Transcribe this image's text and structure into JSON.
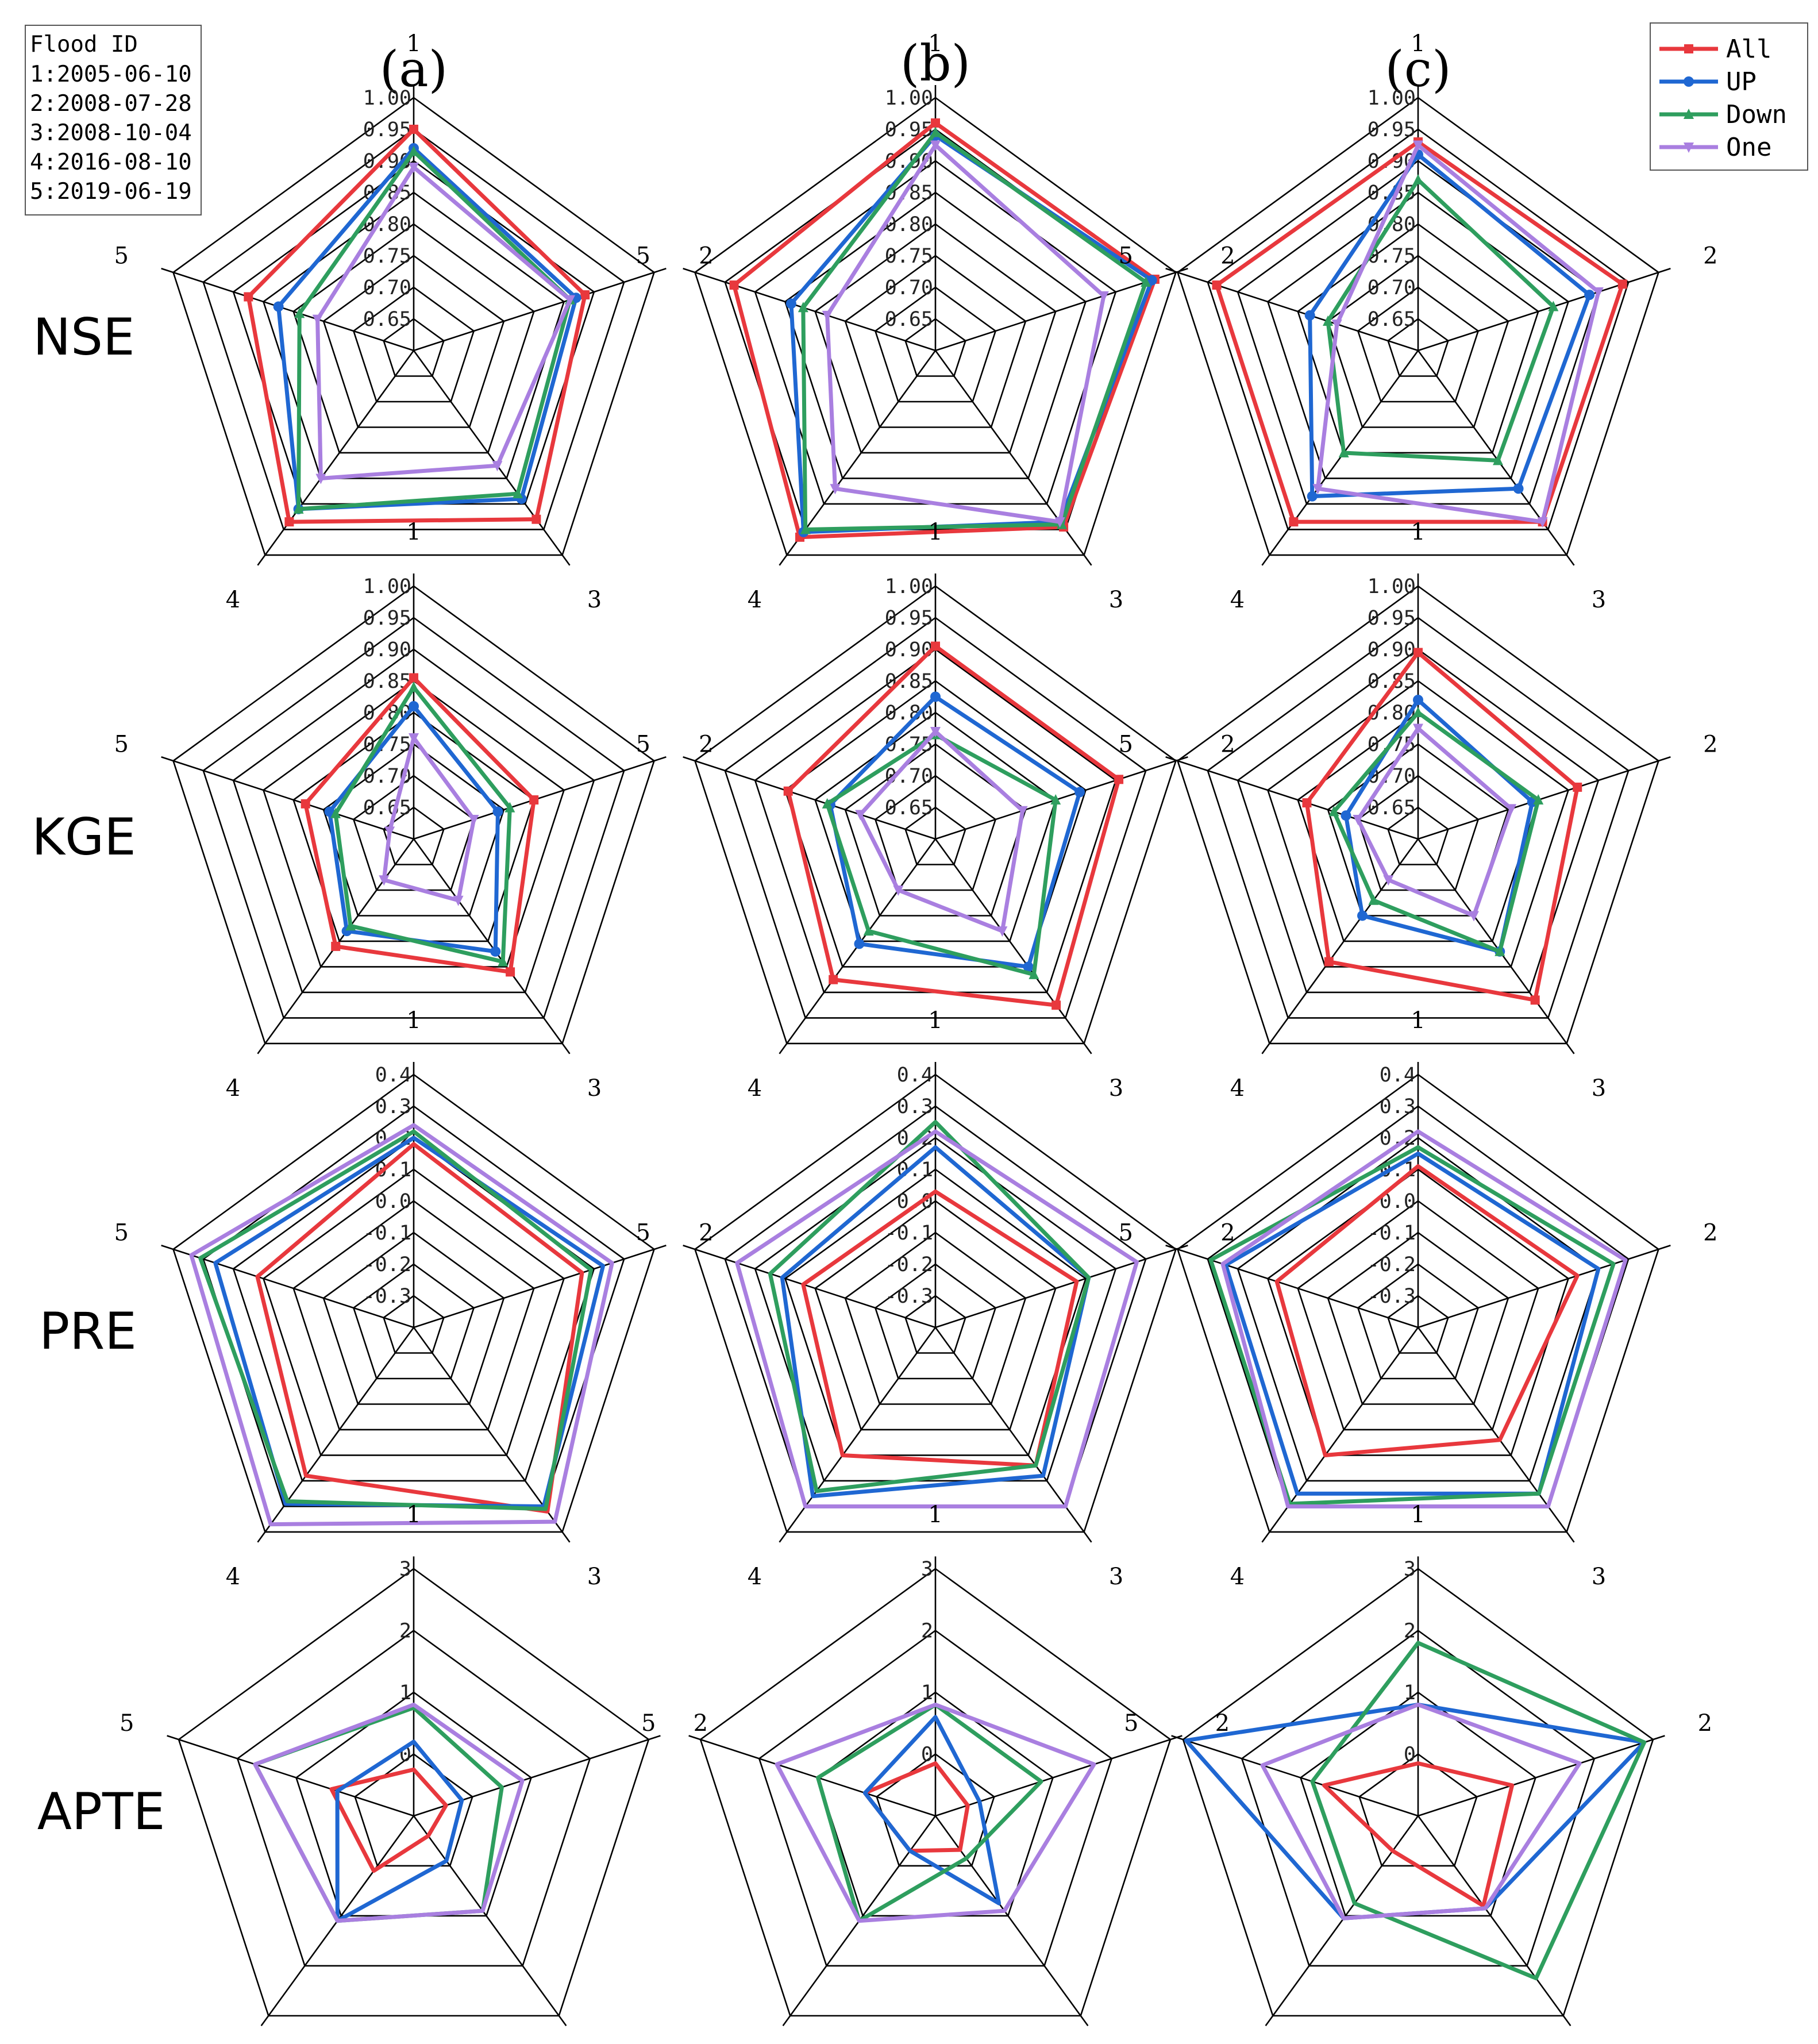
{
  "flood_box": {
    "title": "Flood ID",
    "entries": [
      "1:2005-06-10",
      "2:2008-07-28",
      "3:2008-10-04",
      "4:2016-08-10",
      "5:2019-06-19"
    ]
  },
  "legend": [
    {
      "name": "All",
      "color": "#e8383d",
      "marker": "square"
    },
    {
      "name": "UP",
      "color": "#1f67d2",
      "marker": "circle"
    },
    {
      "name": "Down",
      "color": "#2e9e5e",
      "marker": "triangle-up"
    },
    {
      "name": "One",
      "color": "#a97fe0",
      "marker": "triangle-down"
    }
  ],
  "columns": [
    "(a)",
    "(b)",
    "(c)"
  ],
  "rows": [
    "NSE",
    "KGE",
    "PRE",
    "APTE"
  ],
  "axis_labels": [
    "1",
    "2",
    "3",
    "4",
    "5"
  ],
  "chart_data": [
    {
      "type": "radar",
      "panel": "(a)",
      "metric": "NSE",
      "ticks": [
        "1.00",
        "0.95",
        "0.90",
        "0.85",
        "0.80",
        "0.75",
        "0.70",
        "0.65"
      ],
      "range": [
        0.6,
        1.0
      ],
      "categories": [
        "1",
        "2",
        "3",
        "4",
        "5"
      ],
      "series": [
        {
          "name": "All",
          "values": [
            0.95,
            0.885,
            0.93,
            0.935,
            0.875
          ]
        },
        {
          "name": "UP",
          "values": [
            0.92,
            0.87,
            0.89,
            0.91,
            0.825
          ]
        },
        {
          "name": "Down",
          "values": [
            0.915,
            0.86,
            0.88,
            0.91,
            0.79
          ]
        },
        {
          "name": "One",
          "values": [
            0.89,
            0.86,
            0.825,
            0.85,
            0.76
          ]
        }
      ]
    },
    {
      "type": "radar",
      "panel": "(b)",
      "metric": "NSE",
      "ticks": [
        "1.00",
        "0.95",
        "0.90",
        "0.85",
        "0.80",
        "0.75",
        "0.70",
        "0.65"
      ],
      "range": [
        0.6,
        1.0
      ],
      "categories": [
        "1",
        "2",
        "3",
        "4",
        "5"
      ],
      "series": [
        {
          "name": "All",
          "values": [
            0.96,
            0.965,
            0.945,
            0.965,
            0.935
          ]
        },
        {
          "name": "UP",
          "values": [
            0.94,
            0.96,
            0.935,
            0.955,
            0.84
          ]
        },
        {
          "name": "Down",
          "values": [
            0.945,
            0.95,
            0.94,
            0.95,
            0.82
          ]
        },
        {
          "name": "One",
          "values": [
            0.925,
            0.88,
            0.935,
            0.87,
            0.78
          ]
        }
      ]
    },
    {
      "type": "radar",
      "panel": "(c)",
      "metric": "NSE",
      "ticks": [
        "1.00",
        "0.95",
        "0.90",
        "0.85",
        "0.80",
        "0.75",
        "0.70",
        "0.65"
      ],
      "range": [
        0.6,
        1.0
      ],
      "categories": [
        "1",
        "2",
        "3",
        "4",
        "5"
      ],
      "series": [
        {
          "name": "All",
          "values": [
            0.93,
            0.94,
            0.935,
            0.935,
            0.935
          ]
        },
        {
          "name": "UP",
          "values": [
            0.91,
            0.885,
            0.87,
            0.885,
            0.78
          ]
        },
        {
          "name": "Down",
          "values": [
            0.87,
            0.825,
            0.815,
            0.8,
            0.75
          ]
        },
        {
          "name": "One",
          "values": [
            0.925,
            0.9,
            0.935,
            0.87,
            0.735
          ]
        }
      ]
    },
    {
      "type": "radar",
      "panel": "(a)",
      "metric": "KGE",
      "ticks": [
        "1.00",
        "0.95",
        "0.90",
        "0.85",
        "0.80",
        "0.75",
        "0.70",
        "0.65"
      ],
      "range": [
        0.6,
        1.0
      ],
      "categories": [
        "1",
        "2",
        "3",
        "4",
        "5"
      ],
      "series": [
        {
          "name": "All",
          "values": [
            0.855,
            0.8,
            0.86,
            0.81,
            0.78
          ]
        },
        {
          "name": "UP",
          "values": [
            0.81,
            0.74,
            0.82,
            0.78,
            0.74
          ]
        },
        {
          "name": "Down",
          "values": [
            0.84,
            0.76,
            0.84,
            0.77,
            0.73
          ]
        },
        {
          "name": "One",
          "values": [
            0.76,
            0.7,
            0.72,
            0.68,
            0.64
          ]
        }
      ]
    },
    {
      "type": "radar",
      "panel": "(b)",
      "metric": "KGE",
      "ticks": [
        "1.00",
        "0.95",
        "0.90",
        "0.85",
        "0.80",
        "0.75",
        "0.70",
        "0.65"
      ],
      "range": [
        0.6,
        1.0
      ],
      "categories": [
        "1",
        "2",
        "3",
        "4",
        "5"
      ],
      "series": [
        {
          "name": "All",
          "values": [
            0.905,
            0.905,
            0.925,
            0.875,
            0.845
          ]
        },
        {
          "name": "UP",
          "values": [
            0.825,
            0.84,
            0.85,
            0.805,
            0.775
          ]
        },
        {
          "name": "Down",
          "values": [
            0.765,
            0.8,
            0.865,
            0.78,
            0.78
          ]
        },
        {
          "name": "One",
          "values": [
            0.77,
            0.745,
            0.78,
            0.7,
            0.725
          ]
        }
      ]
    },
    {
      "type": "radar",
      "panel": "(c)",
      "metric": "KGE",
      "ticks": [
        "1.00",
        "0.95",
        "0.90",
        "0.85",
        "0.80",
        "0.75",
        "0.70",
        "0.65"
      ],
      "range": [
        0.6,
        1.0
      ],
      "categories": [
        "1",
        "2",
        "3",
        "4",
        "5"
      ],
      "series": [
        {
          "name": "All",
          "values": [
            0.895,
            0.865,
            0.915,
            0.84,
            0.785
          ]
        },
        {
          "name": "UP",
          "values": [
            0.82,
            0.79,
            0.82,
            0.75,
            0.72
          ]
        },
        {
          "name": "Down",
          "values": [
            0.8,
            0.8,
            0.82,
            0.72,
            0.74
          ]
        },
        {
          "name": "One",
          "values": [
            0.775,
            0.755,
            0.75,
            0.68,
            0.7
          ]
        }
      ]
    },
    {
      "type": "radar",
      "panel": "(a)",
      "metric": "PRE",
      "ticks": [
        "0.4",
        "0.3",
        "0.2",
        "0.1",
        "0.0",
        "-0.1",
        "-0.2",
        "-0.3"
      ],
      "range": [
        -0.4,
        0.4
      ],
      "categories": [
        "1",
        "2",
        "3",
        "4",
        "5"
      ],
      "series": [
        {
          "name": "All",
          "values": [
            0.18,
            0.16,
            0.32,
            0.18,
            0.12
          ]
        },
        {
          "name": "UP",
          "values": [
            0.2,
            0.23,
            0.3,
            0.29,
            0.26
          ]
        },
        {
          "name": "Down",
          "values": [
            0.22,
            0.19,
            0.31,
            0.28,
            0.31
          ]
        },
        {
          "name": "One",
          "values": [
            0.24,
            0.26,
            0.36,
            0.37,
            0.34
          ]
        }
      ]
    },
    {
      "type": "radar",
      "panel": "(b)",
      "metric": "PRE",
      "ticks": [
        "0.4",
        "0.3",
        "0.2",
        "0.1",
        "0.0",
        "-0.1",
        "-0.2",
        "-0.3"
      ],
      "range": [
        -0.4,
        0.4
      ],
      "categories": [
        "1",
        "2",
        "3",
        "4",
        "5"
      ],
      "series": [
        {
          "name": "All",
          "values": [
            0.03,
            0.07,
            0.14,
            0.1,
            0.04
          ]
        },
        {
          "name": "UP",
          "values": [
            0.17,
            0.11,
            0.18,
            0.26,
            0.11
          ]
        },
        {
          "name": "Down",
          "values": [
            0.25,
            0.11,
            0.14,
            0.24,
            0.15
          ]
        },
        {
          "name": "One",
          "values": [
            0.22,
            0.27,
            0.3,
            0.3,
            0.26
          ]
        }
      ]
    },
    {
      "type": "radar",
      "panel": "(c)",
      "metric": "PRE",
      "ticks": [
        "0.4",
        "0.3",
        "0.2",
        "0.1",
        "0.0",
        "-0.1",
        "-0.2",
        "-0.3"
      ],
      "range": [
        -0.4,
        0.4
      ],
      "categories": [
        "1",
        "2",
        "3",
        "4",
        "5"
      ],
      "series": [
        {
          "name": "All",
          "values": [
            0.11,
            0.13,
            0.04,
            0.1,
            0.07
          ]
        },
        {
          "name": "UP",
          "values": [
            0.15,
            0.2,
            0.25,
            0.25,
            0.24
          ]
        },
        {
          "name": "Down",
          "values": [
            0.17,
            0.25,
            0.25,
            0.29,
            0.29
          ]
        },
        {
          "name": "One",
          "values": [
            0.22,
            0.29,
            0.3,
            0.3,
            0.25
          ]
        }
      ]
    },
    {
      "type": "radar",
      "panel": "(a)",
      "metric": "APTE",
      "ticks": [
        "3",
        "2",
        "1",
        "0"
      ],
      "range": [
        -0.8,
        3.2
      ],
      "categories": [
        "1",
        "2",
        "3",
        "4",
        "5"
      ],
      "series": [
        {
          "name": "All",
          "values": [
            -0.05,
            -0.25,
            -0.4,
            0.3,
            0.6
          ]
        },
        {
          "name": "UP",
          "values": [
            0.4,
            0.02,
            0.1,
            1.3,
            0.5
          ]
        },
        {
          "name": "Down",
          "values": [
            0.95,
            0.7,
            1.1,
            1.3,
            1.9
          ]
        },
        {
          "name": "One",
          "values": [
            1.0,
            1.05,
            1.1,
            1.3,
            1.9
          ]
        }
      ]
    },
    {
      "type": "radar",
      "panel": "(b)",
      "metric": "APTE",
      "ticks": [
        "3",
        "2",
        "1",
        "0"
      ],
      "range": [
        -0.8,
        3.2
      ],
      "categories": [
        "1",
        "2",
        "3",
        "4",
        "5"
      ],
      "series": [
        {
          "name": "All",
          "values": [
            0.05,
            -0.25,
            -0.12,
            -0.1,
            0.4
          ]
        },
        {
          "name": "UP",
          "values": [
            0.8,
            -0.05,
            0.95,
            -0.1,
            0.4
          ]
        },
        {
          "name": "Down",
          "values": [
            1.0,
            1.0,
            0.05,
            1.3,
            1.2
          ]
        },
        {
          "name": "One",
          "values": [
            1.0,
            1.9,
            1.1,
            1.3,
            1.9
          ]
        }
      ]
    },
    {
      "type": "radar",
      "panel": "(c)",
      "metric": "APTE",
      "ticks": [
        "3",
        "2",
        "1",
        "0"
      ],
      "range": [
        -0.8,
        3.2
      ],
      "categories": [
        "1",
        "2",
        "3",
        "4",
        "5"
      ],
      "series": [
        {
          "name": "All",
          "values": [
            0.05,
            0.8,
            1.0,
            -0.1,
            0.8
          ]
        },
        {
          "name": "UP",
          "values": [
            1.0,
            3.05,
            1.05,
            1.25,
            3.15
          ]
        },
        {
          "name": "Down",
          "values": [
            2.0,
            3.05,
            2.45,
            0.95,
            1.0
          ]
        },
        {
          "name": "One",
          "values": [
            1.0,
            1.95,
            1.05,
            1.25,
            1.85
          ]
        }
      ]
    }
  ]
}
